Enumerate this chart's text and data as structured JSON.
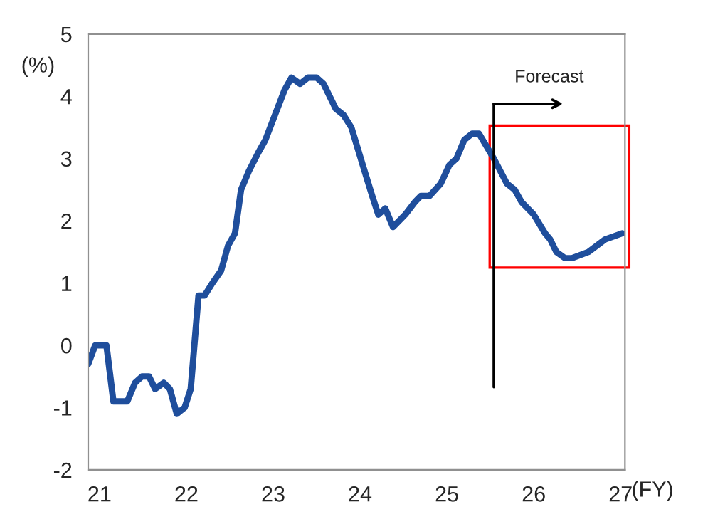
{
  "chart_data": {
    "type": "line",
    "xlabel": "(FY)",
    "ylabel": "(%)",
    "series": [
      {
        "color": "#1f4e9c",
        "x": [
          20.87,
          20.95,
          21.08,
          21.16,
          21.32,
          21.41,
          21.49,
          21.57,
          21.64,
          21.74,
          21.81,
          21.89,
          21.98,
          22.05,
          22.14,
          22.21,
          22.3,
          22.4,
          22.48,
          22.56,
          22.63,
          22.72,
          22.83,
          22.91,
          23.02,
          23.13,
          23.21,
          23.31,
          23.4,
          23.5,
          23.58,
          23.72,
          23.81,
          23.9,
          24.03,
          24.14,
          24.21,
          24.29,
          24.38,
          24.52,
          24.63,
          24.7,
          24.8,
          24.93,
          25.03,
          25.11,
          25.2,
          25.29,
          25.37,
          25.54,
          25.69,
          25.78,
          25.86,
          26.0,
          26.13,
          26.19,
          26.26,
          26.36,
          26.44,
          26.63,
          26.82,
          27.02
        ],
        "values": [
          -0.3,
          0.0,
          0.0,
          -0.9,
          -0.9,
          -0.6,
          -0.5,
          -0.5,
          -0.7,
          -0.6,
          -0.7,
          -1.1,
          -1.0,
          -0.7,
          0.8,
          0.8,
          1.0,
          1.2,
          1.6,
          1.8,
          2.5,
          2.8,
          3.1,
          3.3,
          3.7,
          4.1,
          4.3,
          4.2,
          4.3,
          4.3,
          4.2,
          3.8,
          3.7,
          3.5,
          2.9,
          2.4,
          2.1,
          2.2,
          1.9,
          2.1,
          2.3,
          2.4,
          2.4,
          2.6,
          2.9,
          3.0,
          3.3,
          3.4,
          3.4,
          3.0,
          2.6,
          2.5,
          2.3,
          2.1,
          1.8,
          1.7,
          1.5,
          1.4,
          1.4,
          1.5,
          1.7,
          1.8
        ]
      }
    ],
    "xlim": [
      20.87,
      27.05
    ],
    "xticks": [
      21,
      22,
      23,
      24,
      25,
      26,
      27
    ],
    "ylim": [
      -2,
      5
    ],
    "yticks": [
      -2,
      -1,
      0,
      1,
      2,
      3,
      4,
      5
    ],
    "grid": false,
    "legend": false,
    "marker": "none",
    "line_style": "solid",
    "ref_lines": [
      {
        "axis": "x",
        "value": 25.54,
        "label": "Forecast",
        "color": "#000000",
        "line_style": "solid"
      }
    ]
  }
}
